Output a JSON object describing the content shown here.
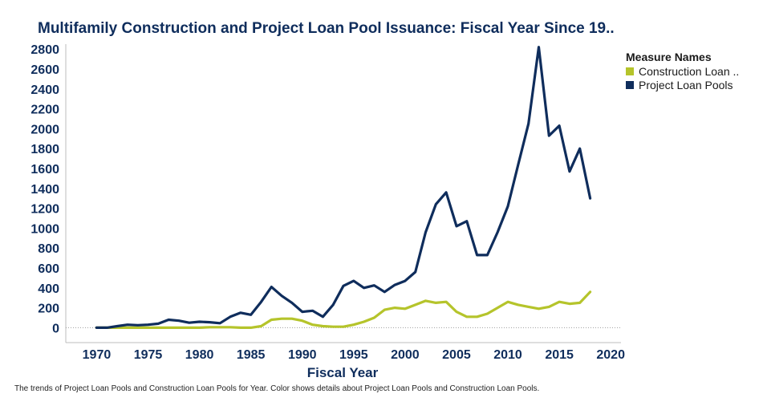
{
  "header": {
    "title": "Multifamily Construction and Project Loan Pool Issuance: Fiscal Year Since 19.."
  },
  "legend": {
    "title": "Measure Names",
    "items": [
      {
        "label": "Construction Loan ..",
        "color": "#b5c42b"
      },
      {
        "label": "Project Loan Pools",
        "color": "#0f2d5c"
      }
    ]
  },
  "footnote": "The trends of Project Loan Pools and Construction Loan Pools for Year. Color shows details about Project Loan Pools and Construction Loan Pools.",
  "chart_data": {
    "type": "line",
    "xlabel": "Fiscal Year",
    "ylabel": "",
    "xlim": [
      1967,
      2021
    ],
    "ylim": [
      -150,
      2850
    ],
    "x_ticks": [
      1970,
      1975,
      1980,
      1985,
      1990,
      1995,
      2000,
      2005,
      2010,
      2015,
      2020
    ],
    "y_ticks": [
      0,
      200,
      400,
      600,
      800,
      1000,
      1200,
      1400,
      1600,
      1800,
      2000,
      2200,
      2400,
      2600,
      2800
    ],
    "zero_line": true,
    "grid": false,
    "legend_position": "right",
    "x": [
      1970,
      1971,
      1972,
      1973,
      1974,
      1975,
      1976,
      1977,
      1978,
      1979,
      1980,
      1981,
      1982,
      1983,
      1984,
      1985,
      1986,
      1987,
      1988,
      1989,
      1990,
      1991,
      1992,
      1993,
      1994,
      1995,
      1996,
      1997,
      1998,
      1999,
      2000,
      2001,
      2002,
      2003,
      2004,
      2005,
      2006,
      2007,
      2008,
      2009,
      2010,
      2011,
      2012,
      2013,
      2014,
      2015,
      2016,
      2017,
      2018
    ],
    "series": [
      {
        "name": "Project Loan Pools",
        "color": "#0f2d5c",
        "values": [
          0,
          0,
          15,
          30,
          25,
          30,
          40,
          80,
          70,
          50,
          60,
          55,
          45,
          110,
          150,
          130,
          260,
          410,
          320,
          250,
          160,
          170,
          110,
          230,
          420,
          470,
          400,
          425,
          360,
          430,
          470,
          560,
          960,
          1240,
          1360,
          1020,
          1070,
          730,
          730,
          960,
          1220,
          1640,
          2050,
          2820,
          1930,
          2030,
          1570,
          1800,
          1300
        ]
      },
      {
        "name": "Construction Loan ..",
        "color": "#b5c42b",
        "values": [
          0,
          0,
          0,
          0,
          0,
          0,
          0,
          0,
          0,
          0,
          0,
          5,
          5,
          5,
          0,
          0,
          15,
          80,
          90,
          90,
          70,
          30,
          15,
          10,
          10,
          30,
          60,
          100,
          180,
          200,
          190,
          230,
          270,
          250,
          260,
          160,
          110,
          110,
          140,
          200,
          260,
          230,
          210,
          190,
          210,
          260,
          240,
          250,
          360
        ]
      }
    ]
  }
}
